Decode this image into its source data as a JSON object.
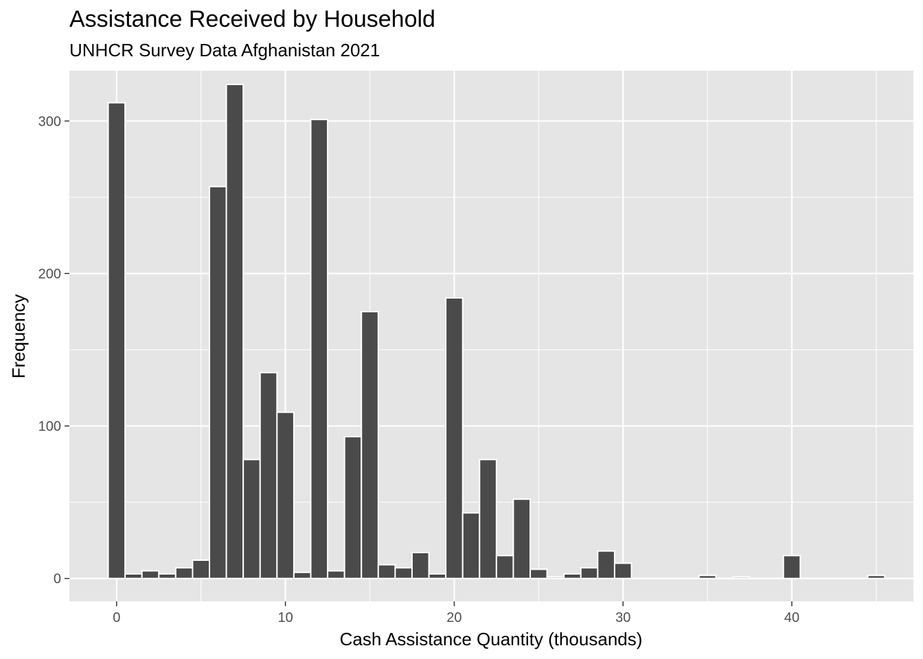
{
  "chart_data": {
    "type": "bar",
    "title": "Assistance Received by Household",
    "subtitle": "UNHCR Survey Data Afghanistan 2021",
    "xlabel": "Cash Assistance Quantity (thousands)",
    "ylabel": "Frequency",
    "bin_width": 1,
    "xlim": [
      -2.8,
      47.2
    ],
    "ylim": [
      -15,
      333
    ],
    "x_ticks": [
      0,
      10,
      20,
      30,
      40
    ],
    "x_tick_labels": [
      "0",
      "10",
      "20",
      "30",
      "40"
    ],
    "y_ticks": [
      0,
      100,
      200,
      300
    ],
    "y_tick_labels": [
      "0",
      "100",
      "200",
      "300"
    ],
    "grid": true,
    "colors": {
      "bar_fill": "#4a4a4a",
      "bar_outline": "#ffffff",
      "panel": "#e5e5e5",
      "grid": "#ffffff"
    },
    "x": [
      0,
      1,
      2,
      3,
      4,
      5,
      6,
      7,
      8,
      9,
      10,
      11,
      12,
      13,
      14,
      15,
      16,
      17,
      18,
      19,
      20,
      21,
      22,
      23,
      24,
      25,
      26,
      27,
      28,
      29,
      30,
      31,
      32,
      33,
      34,
      35,
      36,
      37,
      38,
      39,
      40,
      41,
      42,
      43,
      44,
      45
    ],
    "values": [
      312,
      3,
      5,
      3,
      7,
      12,
      257,
      324,
      78,
      135,
      109,
      4,
      301,
      5,
      93,
      175,
      9,
      7,
      17,
      3,
      184,
      43,
      78,
      15,
      52,
      6,
      1,
      3,
      7,
      18,
      10,
      0,
      0,
      0,
      0,
      2,
      0,
      1,
      0,
      0,
      15,
      0,
      0,
      0,
      0,
      2
    ]
  }
}
